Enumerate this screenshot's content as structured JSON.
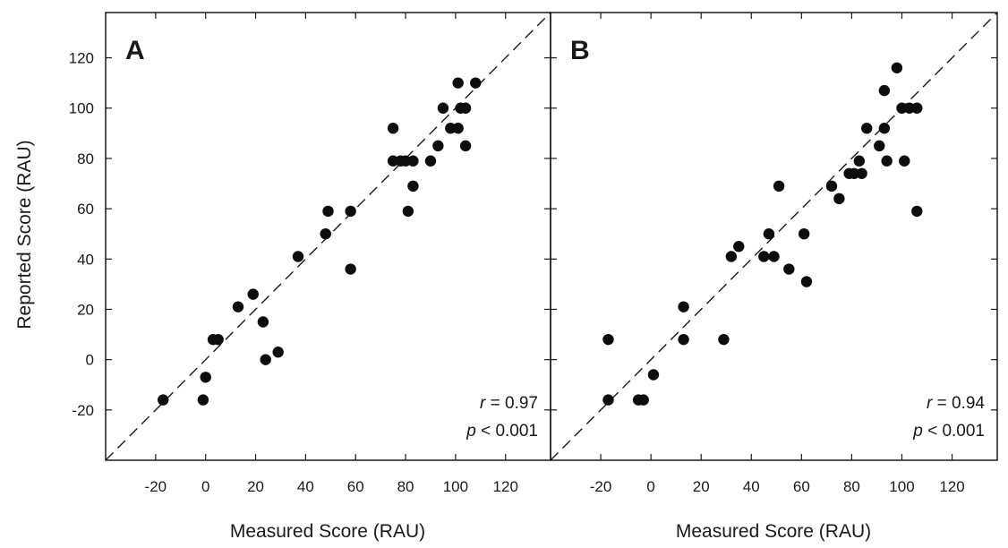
{
  "figure": {
    "ylabel": "Reported Score (RAU)"
  },
  "chart_data": [
    {
      "type": "scatter",
      "panel_label": "A",
      "xlabel": "Measured Score (RAU)",
      "ylabel": "Reported Score (RAU)",
      "xlim": [
        -40,
        138
      ],
      "ylim": [
        -40,
        138
      ],
      "xticks": [
        -20,
        0,
        20,
        40,
        60,
        80,
        100,
        120
      ],
      "yticks": [
        -20,
        0,
        20,
        40,
        60,
        80,
        100,
        120
      ],
      "reference_line": "identity (y = x), dashed",
      "stats": {
        "r_label": "r",
        "r_value": "= 0.97",
        "p_label": "p",
        "p_value": "< 0.001"
      },
      "points": [
        {
          "x": -17,
          "y": -16
        },
        {
          "x": -1,
          "y": -16
        },
        {
          "x": 0,
          "y": -7
        },
        {
          "x": 3,
          "y": 8
        },
        {
          "x": 5,
          "y": 8
        },
        {
          "x": 13,
          "y": 21
        },
        {
          "x": 19,
          "y": 26
        },
        {
          "x": 23,
          "y": 15
        },
        {
          "x": 24,
          "y": 0
        },
        {
          "x": 29,
          "y": 3
        },
        {
          "x": 37,
          "y": 41
        },
        {
          "x": 48,
          "y": 50
        },
        {
          "x": 49,
          "y": 59
        },
        {
          "x": 58,
          "y": 59
        },
        {
          "x": 58,
          "y": 36
        },
        {
          "x": 75,
          "y": 92
        },
        {
          "x": 75,
          "y": 79
        },
        {
          "x": 78,
          "y": 79
        },
        {
          "x": 80,
          "y": 79
        },
        {
          "x": 81,
          "y": 59
        },
        {
          "x": 83,
          "y": 79
        },
        {
          "x": 83,
          "y": 69
        },
        {
          "x": 90,
          "y": 79
        },
        {
          "x": 93,
          "y": 85
        },
        {
          "x": 95,
          "y": 100
        },
        {
          "x": 98,
          "y": 92
        },
        {
          "x": 101,
          "y": 92
        },
        {
          "x": 101,
          "y": 110
        },
        {
          "x": 102,
          "y": 100
        },
        {
          "x": 104,
          "y": 100
        },
        {
          "x": 104,
          "y": 85
        },
        {
          "x": 108,
          "y": 110
        }
      ]
    },
    {
      "type": "scatter",
      "panel_label": "B",
      "xlabel": "Measured Score (RAU)",
      "ylabel": "",
      "xlim": [
        -40,
        138
      ],
      "ylim": [
        -40,
        138
      ],
      "xticks": [
        -20,
        0,
        20,
        40,
        60,
        80,
        100,
        120
      ],
      "yticks": [
        -20,
        0,
        20,
        40,
        60,
        80,
        100,
        120
      ],
      "reference_line": "identity (y = x), dashed",
      "stats": {
        "r_label": "r",
        "r_value": "= 0.94",
        "p_label": "p",
        "p_value": "< 0.001"
      },
      "points": [
        {
          "x": -17,
          "y": 8
        },
        {
          "x": -17,
          "y": -16
        },
        {
          "x": -5,
          "y": -16
        },
        {
          "x": -3,
          "y": -16
        },
        {
          "x": 1,
          "y": -6
        },
        {
          "x": 13,
          "y": 21
        },
        {
          "x": 13,
          "y": 8
        },
        {
          "x": 29,
          "y": 8
        },
        {
          "x": 32,
          "y": 41
        },
        {
          "x": 35,
          "y": 45
        },
        {
          "x": 45,
          "y": 41
        },
        {
          "x": 47,
          "y": 50
        },
        {
          "x": 49,
          "y": 41
        },
        {
          "x": 51,
          "y": 69
        },
        {
          "x": 55,
          "y": 36
        },
        {
          "x": 61,
          "y": 50
        },
        {
          "x": 62,
          "y": 31
        },
        {
          "x": 72,
          "y": 69
        },
        {
          "x": 75,
          "y": 64
        },
        {
          "x": 79,
          "y": 74
        },
        {
          "x": 81,
          "y": 74
        },
        {
          "x": 83,
          "y": 79
        },
        {
          "x": 84,
          "y": 74
        },
        {
          "x": 86,
          "y": 92
        },
        {
          "x": 91,
          "y": 85
        },
        {
          "x": 93,
          "y": 107
        },
        {
          "x": 93,
          "y": 92
        },
        {
          "x": 94,
          "y": 79
        },
        {
          "x": 98,
          "y": 116
        },
        {
          "x": 100,
          "y": 100
        },
        {
          "x": 101,
          "y": 79
        },
        {
          "x": 103,
          "y": 100
        },
        {
          "x": 106,
          "y": 100
        },
        {
          "x": 106,
          "y": 59
        }
      ]
    }
  ]
}
